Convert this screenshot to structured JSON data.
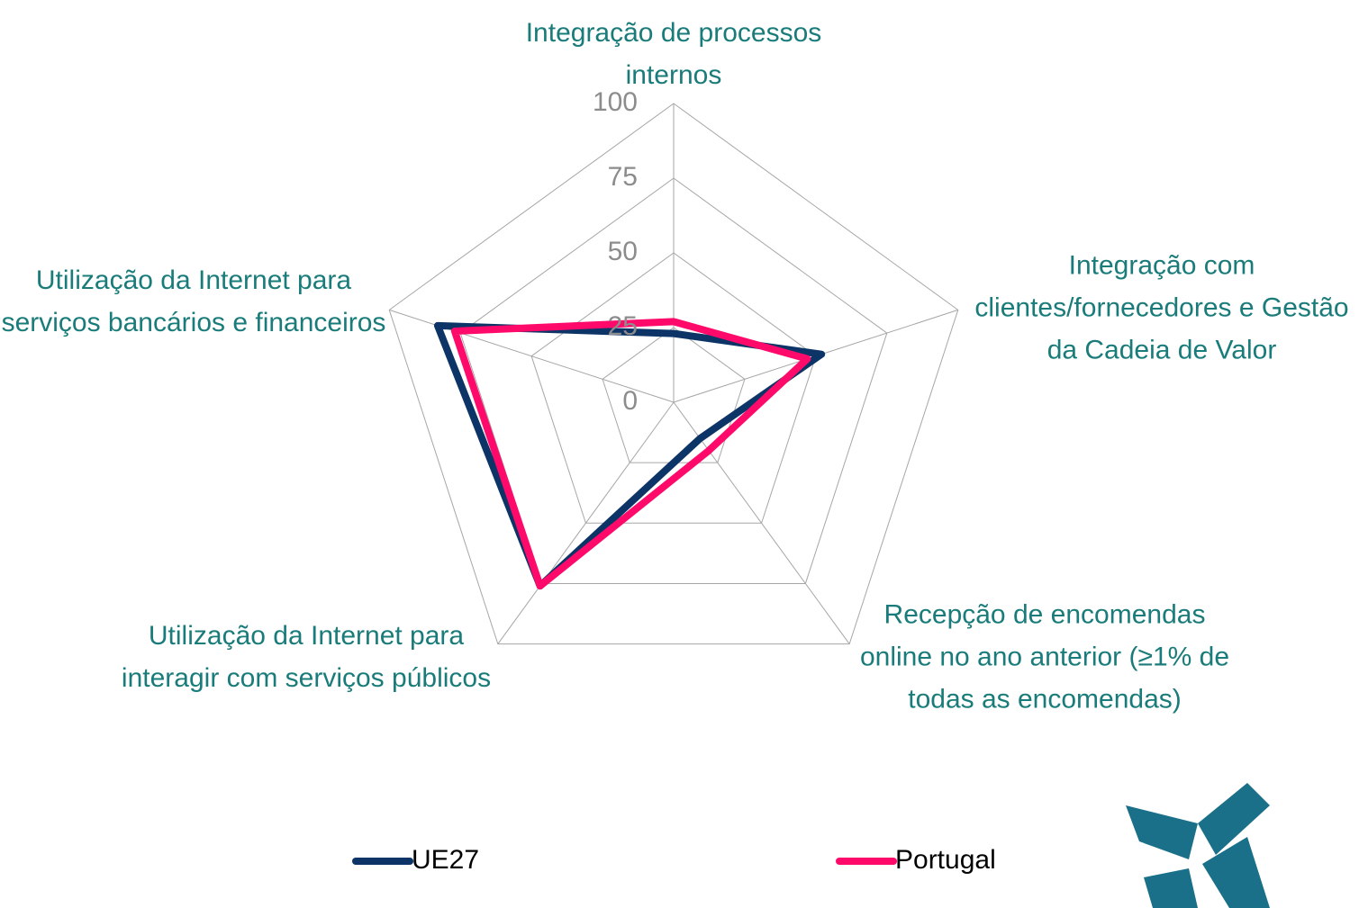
{
  "chart_data": {
    "type": "radar",
    "categories": [
      "Integração de processos internos",
      "Integração com clientes/fornecedores e Gestão da Cadeia de Valor",
      "Recepção de encomendas online no ano anterior (≥1% de todas as encomendas)",
      "Utilização da Internet para interagir com serviços públicos",
      "Utilização da Internet para serviços bancários e financeiros"
    ],
    "series": [
      {
        "name": "UE27",
        "color": "#0d3466",
        "values": [
          23,
          52,
          15,
          76,
          83
        ]
      },
      {
        "name": "Portugal",
        "color": "#ff0a6a",
        "values": [
          27,
          47,
          20,
          76,
          77
        ]
      }
    ],
    "ylim": [
      0,
      100
    ],
    "yticks": [
      0,
      25,
      50,
      75,
      100
    ],
    "grid": true,
    "legend": "bottom"
  }
}
